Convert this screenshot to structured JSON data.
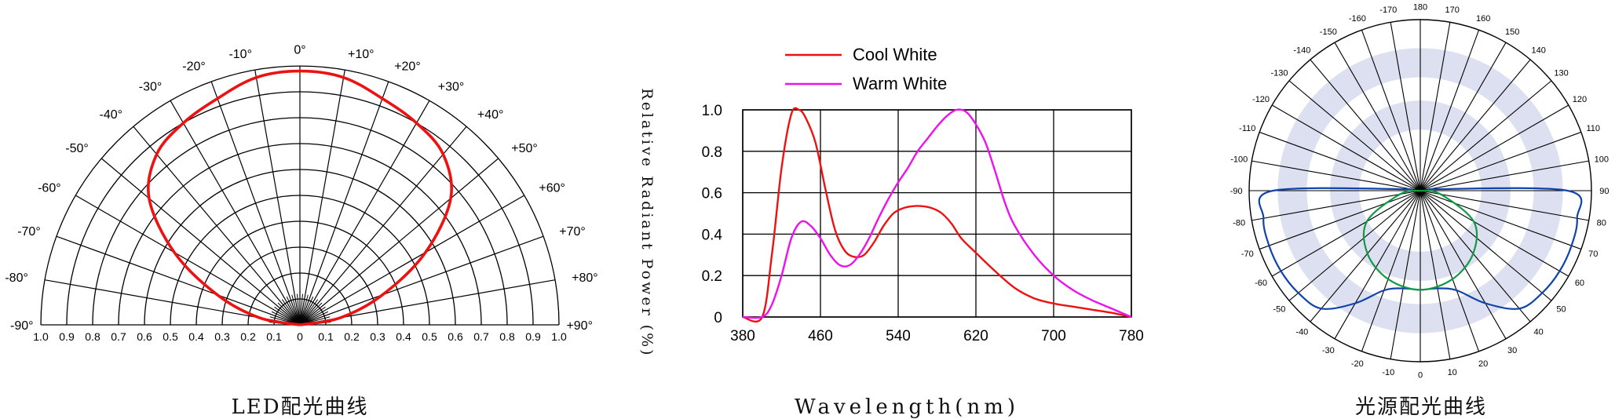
{
  "chart_data": [
    {
      "type": "polar",
      "caption": "LED配光曲线",
      "angle_tick_labels": [
        "-90°",
        "-80°",
        "-70°",
        "-60°",
        "-50°",
        "-40°",
        "-30°",
        "-20°",
        "-10°",
        "0°",
        "+10°",
        "+20°",
        "+30°",
        "+40°",
        "+50°",
        "+60°",
        "+70°",
        "+80°",
        "+90°"
      ],
      "radial_tick_labels_left": [
        "1.0",
        "0.9",
        "0.8",
        "0.7",
        "0.6",
        "0.5",
        "0.4",
        "0.3",
        "0.2",
        "0.1"
      ],
      "radial_tick_labels_right": [
        "0",
        "0.1",
        "0.2",
        "0.3",
        "0.4",
        "0.5",
        "0.6",
        "0.7",
        "0.8",
        "0.9",
        "1.0"
      ],
      "series": [
        {
          "color": "#ee1111",
          "angles": [
            -90,
            -80,
            -70,
            -60,
            -50,
            -40,
            -30,
            -20,
            -10,
            0,
            10,
            20,
            30,
            40,
            50,
            60,
            70,
            80,
            90
          ],
          "values": [
            0.0,
            0.16,
            0.34,
            0.56,
            0.76,
            0.86,
            0.9,
            0.93,
            0.97,
            0.98,
            0.97,
            0.93,
            0.9,
            0.86,
            0.76,
            0.56,
            0.34,
            0.16,
            0.0
          ]
        }
      ]
    },
    {
      "type": "line",
      "xlabel": "Wavelength(nm)",
      "ylabel": "Relative Radiant Power (%)",
      "x_ticks": [
        "380",
        "460",
        "540",
        "620",
        "700",
        "780"
      ],
      "y_ticks": [
        "0",
        "0.2",
        "0.4",
        "0.6",
        "0.8",
        "1.0"
      ],
      "xlim": [
        380,
        780
      ],
      "ylim": [
        0,
        1.0
      ],
      "grid": true,
      "legend_position": "top",
      "series": [
        {
          "name": "Cool White",
          "color": "#ee1111",
          "x": [
            380,
            400,
            410,
            420,
            430,
            438,
            445,
            455,
            465,
            475,
            485,
            495,
            505,
            515,
            525,
            535,
            545,
            555,
            565,
            575,
            585,
            595,
            605,
            620,
            640,
            660,
            680,
            700,
            720,
            740,
            760,
            780
          ],
          "y": [
            0,
            0,
            0.3,
            0.72,
            0.98,
            1.0,
            0.96,
            0.84,
            0.62,
            0.42,
            0.32,
            0.29,
            0.3,
            0.36,
            0.44,
            0.5,
            0.525,
            0.535,
            0.535,
            0.525,
            0.5,
            0.45,
            0.38,
            0.31,
            0.22,
            0.14,
            0.09,
            0.065,
            0.05,
            0.035,
            0.02,
            0
          ]
        },
        {
          "name": "Warm White",
          "color": "#ee11ee",
          "x": [
            380,
            400,
            410,
            420,
            430,
            440,
            450,
            460,
            470,
            480,
            490,
            500,
            510,
            520,
            530,
            540,
            550,
            560,
            570,
            580,
            590,
            600,
            610,
            620,
            630,
            640,
            650,
            660,
            680,
            700,
            720,
            740,
            760,
            780
          ],
          "y": [
            0,
            0,
            0.06,
            0.2,
            0.38,
            0.46,
            0.44,
            0.38,
            0.3,
            0.25,
            0.25,
            0.3,
            0.38,
            0.48,
            0.57,
            0.65,
            0.72,
            0.8,
            0.86,
            0.92,
            0.97,
            1.0,
            0.99,
            0.93,
            0.84,
            0.7,
            0.55,
            0.44,
            0.3,
            0.2,
            0.13,
            0.08,
            0.04,
            0
          ]
        }
      ]
    },
    {
      "type": "polar",
      "caption": "光源配光曲线",
      "angle_tick_labels": [
        "180",
        "170",
        "160",
        "150",
        "140",
        "130",
        "120",
        "110",
        "100",
        "90",
        "80",
        "70",
        "60",
        "50",
        "40",
        "30",
        "20",
        "10",
        "0",
        "-10",
        "-20",
        "-30",
        "-40",
        "-50",
        "-60",
        "-70",
        "-80",
        "-90",
        "-100",
        "-110",
        "-120",
        "-130",
        "-140",
        "-150",
        "-160",
        "-170"
      ],
      "series": [
        {
          "color": "#1144aa",
          "angles": [
            0,
            10,
            20,
            30,
            40,
            50,
            60,
            70,
            80,
            90,
            100,
            -10,
            -20,
            -30,
            -40,
            -50,
            -60,
            -70,
            -80,
            -90,
            -100
          ],
          "values": [
            0.58,
            0.58,
            0.62,
            0.76,
            0.9,
            0.93,
            0.94,
            0.94,
            0.93,
            0.86,
            0.05,
            0.58,
            0.62,
            0.76,
            0.9,
            0.93,
            0.94,
            0.94,
            0.93,
            0.86,
            0.05
          ]
        },
        {
          "color": "#119944",
          "angles": [
            0,
            20,
            40,
            60,
            80,
            90,
            -20,
            -40,
            -60,
            -80,
            -90
          ],
          "values": [
            0.58,
            0.55,
            0.48,
            0.36,
            0.12,
            0.0,
            0.55,
            0.48,
            0.36,
            0.12,
            0.0
          ]
        }
      ]
    }
  ]
}
